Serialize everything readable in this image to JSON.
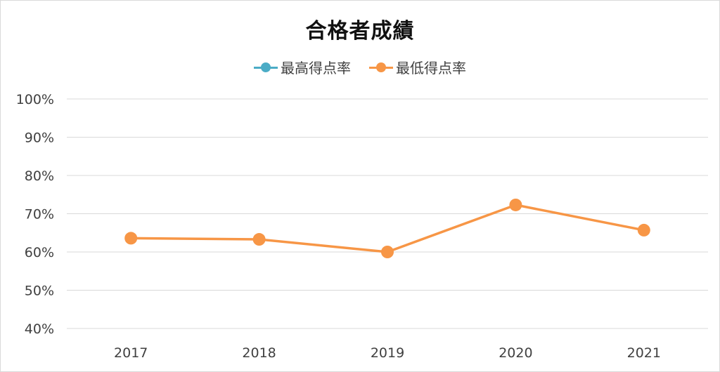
{
  "chart_data": {
    "type": "line",
    "title": "合格者成績",
    "categories": [
      "2017",
      "2018",
      "2019",
      "2020",
      "2021"
    ],
    "series": [
      {
        "name": "最高得点率",
        "color": "#4bacc6",
        "values": [
          null,
          null,
          null,
          null,
          null
        ]
      },
      {
        "name": "最低得点率",
        "color": "#f79646",
        "values": [
          63.6,
          63.3,
          60.0,
          72.3,
          65.7
        ]
      }
    ],
    "ylim": [
      40,
      100
    ],
    "yticks": [
      "40%",
      "50%",
      "60%",
      "70%",
      "80%",
      "90%",
      "100%"
    ],
    "grid": true,
    "legend": "top"
  }
}
